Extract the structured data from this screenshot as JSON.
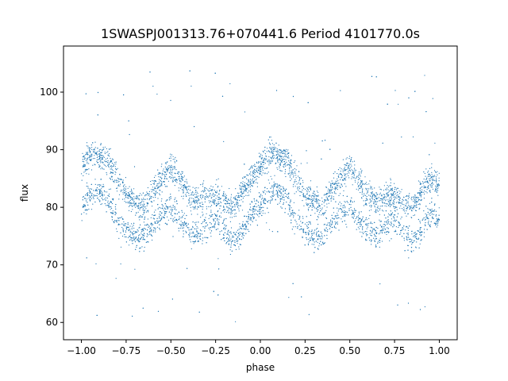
{
  "chart_data": {
    "type": "scatter",
    "title": "1SWASPJ001313.76+070441.6 Period 4101770.0s",
    "xlabel": "phase",
    "ylabel": "flux",
    "xlim": [
      -1.1,
      1.1
    ],
    "ylim": [
      57,
      108
    ],
    "xticks": [
      {
        "value": -1.0,
        "label": "−1.00"
      },
      {
        "value": -0.75,
        "label": "−0.75"
      },
      {
        "value": -0.5,
        "label": "−0.50"
      },
      {
        "value": -0.25,
        "label": "−0.25"
      },
      {
        "value": 0.0,
        "label": "0.00"
      },
      {
        "value": 0.25,
        "label": "0.25"
      },
      {
        "value": 0.5,
        "label": "0.50"
      },
      {
        "value": 0.75,
        "label": "0.75"
      },
      {
        "value": 1.0,
        "label": "1.00"
      }
    ],
    "yticks": [
      {
        "value": 60,
        "label": "60"
      },
      {
        "value": 70,
        "label": "70"
      },
      {
        "value": 80,
        "label": "80"
      },
      {
        "value": 90,
        "label": "90"
      },
      {
        "value": 100,
        "label": "100"
      }
    ],
    "grid": false,
    "point_color": "#1f77b4",
    "series": [
      {
        "x": [
          -1.0,
          -0.95,
          -0.9,
          -0.85,
          -0.8,
          -0.75,
          -0.7,
          -0.65,
          -0.6,
          -0.55,
          -0.5,
          -0.45,
          -0.4,
          -0.35,
          -0.3,
          -0.25,
          -0.2,
          -0.15,
          -0.1,
          -0.05,
          0.0,
          0.05,
          0.1,
          0.15,
          0.2,
          0.25,
          0.3,
          0.35,
          0.4,
          0.45,
          0.5,
          0.55,
          0.6,
          0.65,
          0.7,
          0.75,
          0.8,
          0.85,
          0.9,
          0.95,
          1.0
        ],
        "y": [
          87,
          89,
          89,
          88,
          85,
          82,
          81,
          80,
          83,
          85,
          87,
          85,
          82,
          81,
          82,
          82,
          81,
          80,
          83,
          85,
          87,
          89,
          89,
          88,
          85,
          82,
          81,
          80,
          83,
          85,
          87,
          85,
          82,
          81,
          82,
          82,
          81,
          80,
          83,
          85,
          84
        ]
      },
      {
        "x": [
          -1.0,
          -0.95,
          -0.9,
          -0.85,
          -0.8,
          -0.75,
          -0.7,
          -0.65,
          -0.6,
          -0.55,
          -0.5,
          -0.45,
          -0.4,
          -0.35,
          -0.3,
          -0.25,
          -0.2,
          -0.15,
          -0.1,
          -0.05,
          0.0,
          0.05,
          0.1,
          0.15,
          0.2,
          0.25,
          0.3,
          0.35,
          0.4,
          0.45,
          0.5,
          0.55,
          0.6,
          0.65,
          0.7,
          0.75,
          0.8,
          0.85,
          0.9,
          0.95,
          1.0
        ],
        "y": [
          80,
          82,
          83,
          81,
          78,
          76,
          75,
          75,
          77,
          79,
          80,
          78,
          76,
          75,
          77,
          78,
          76,
          74,
          76,
          79,
          80,
          82,
          83,
          81,
          78,
          76,
          75,
          75,
          77,
          79,
          80,
          78,
          76,
          75,
          77,
          78,
          76,
          74,
          76,
          79,
          78
        ]
      }
    ]
  }
}
